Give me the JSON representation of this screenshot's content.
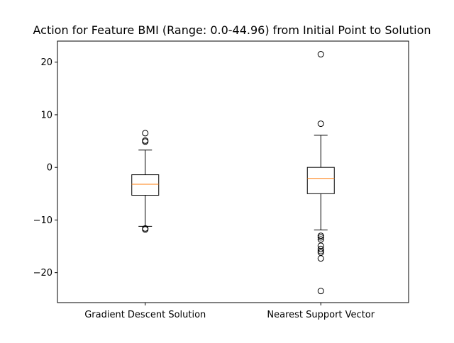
{
  "chart_data": {
    "type": "boxplot",
    "title": "Action for Feature BMI (Range: 0.0-44.96) from Initial Point to Solution",
    "xlabel": "",
    "ylabel": "",
    "categories": [
      "Gradient Descent Solution",
      "Nearest Support Vector"
    ],
    "ylim": [
      -25.7,
      24.0
    ],
    "yticks": [
      -20,
      -10,
      0,
      10,
      20
    ],
    "ytick_labels": [
      "−20",
      "−10",
      "0",
      "10",
      "20"
    ],
    "grid": false,
    "boxes": [
      {
        "category": "Gradient Descent Solution",
        "whisker_low": -11.2,
        "q1": -5.3,
        "median": -3.2,
        "q3": -1.4,
        "whisker_high": 3.3,
        "outliers": [
          6.5,
          5.1,
          4.9,
          -11.6,
          -11.8
        ]
      },
      {
        "category": "Nearest Support Vector",
        "whisker_low": -11.9,
        "q1": -5.0,
        "median": -2.1,
        "q3": 0.0,
        "whisker_high": 6.1,
        "outliers": [
          21.5,
          8.3,
          -13.0,
          -13.3,
          -13.7,
          -14.9,
          -15.5,
          -15.9,
          -16.2,
          -17.3,
          -23.5
        ]
      }
    ],
    "colors": {
      "box": "#000000",
      "median": "#ff7f0e",
      "outlier": "#000000"
    }
  }
}
